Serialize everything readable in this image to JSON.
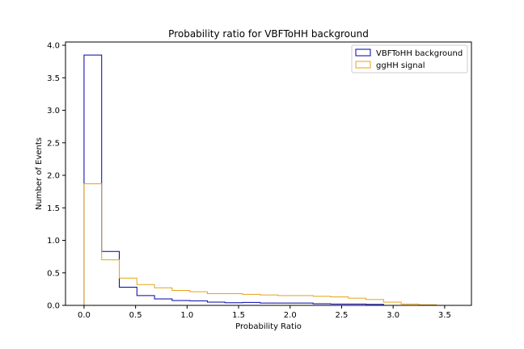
{
  "chart_data": {
    "type": "histogram",
    "title": "Probability ratio for VBFToHH background",
    "xlabel": "Probability Ratio",
    "ylabel": "Number of Events",
    "xlim": [
      -0.18,
      3.76
    ],
    "ylim": [
      0,
      4.05
    ],
    "xticks": [
      "0.0",
      "0.5",
      "1.0",
      "1.5",
      "2.0",
      "2.5",
      "3.0",
      "3.5"
    ],
    "yticks": [
      "0.0",
      "0.5",
      "1.0",
      "1.5",
      "2.0",
      "2.5",
      "3.0",
      "3.5",
      "4.0"
    ],
    "grid": false,
    "legend_position": "upper right",
    "series": [
      {
        "name": "VBFToHH background",
        "color": "#0000aa",
        "bin_edges": [
          0.0,
          0.171,
          0.342,
          0.513,
          0.684,
          0.855,
          1.026,
          1.197,
          1.368,
          1.539,
          1.71,
          1.881,
          2.052,
          2.223,
          2.394,
          2.565,
          2.736,
          2.907,
          3.078,
          3.249,
          3.42
        ],
        "values": [
          3.85,
          0.83,
          0.28,
          0.15,
          0.1,
          0.075,
          0.07,
          0.05,
          0.04,
          0.045,
          0.035,
          0.035,
          0.035,
          0.025,
          0.02,
          0.02,
          0.015,
          0.0,
          0.0,
          0.0
        ]
      },
      {
        "name": "ggHH signal",
        "color": "#e8a317",
        "bin_edges": [
          0.0,
          0.171,
          0.342,
          0.513,
          0.684,
          0.855,
          1.026,
          1.197,
          1.368,
          1.539,
          1.71,
          1.881,
          2.052,
          2.223,
          2.394,
          2.565,
          2.736,
          2.907,
          3.078,
          3.249,
          3.42
        ],
        "values": [
          1.87,
          0.7,
          0.42,
          0.32,
          0.27,
          0.23,
          0.21,
          0.18,
          0.18,
          0.17,
          0.16,
          0.15,
          0.15,
          0.14,
          0.13,
          0.11,
          0.09,
          0.05,
          0.02,
          0.01
        ]
      }
    ]
  }
}
